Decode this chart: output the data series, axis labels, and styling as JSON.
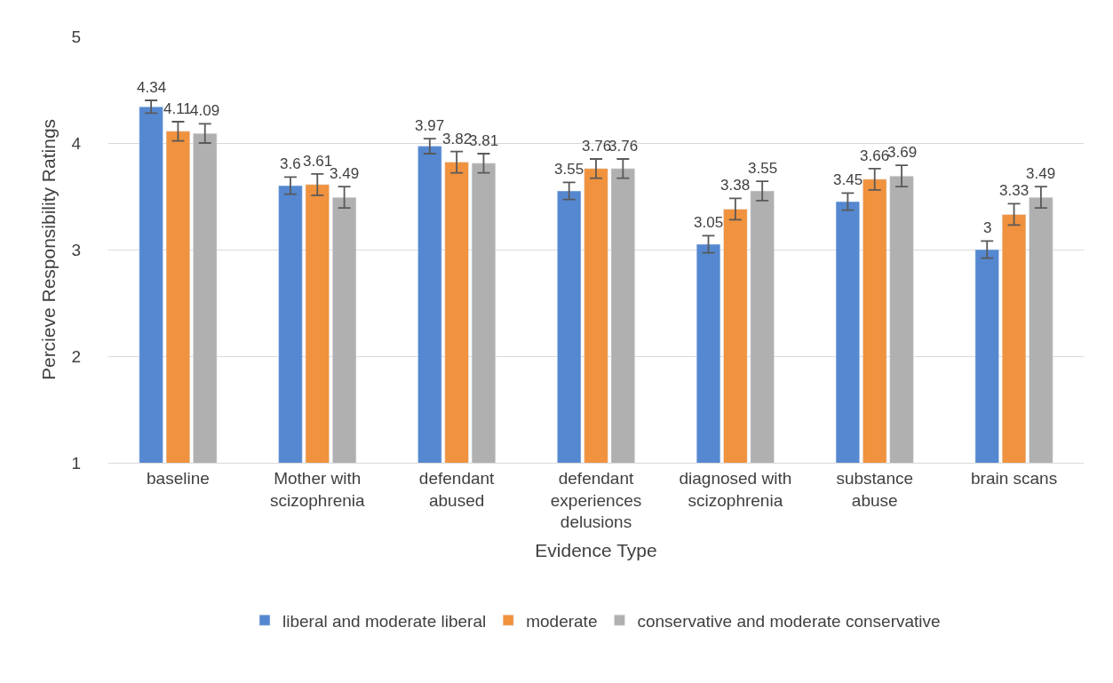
{
  "chart_data": {
    "type": "bar",
    "xlabel": "Evidence Type",
    "ylabel": "Percieve Responsibility Ratings",
    "categories": [
      "baseline",
      "Mother with scizophrenia",
      "defendant abused",
      "defendant experiences delusions",
      "diagnosed with scizophrenia",
      "substance abuse",
      "brain scans"
    ],
    "series": [
      {
        "name": "liberal and moderate liberal",
        "color": "#5588d0",
        "values": [
          4.34,
          3.6,
          3.97,
          3.55,
          3.05,
          3.45,
          3
        ],
        "errors": [
          0.06,
          0.08,
          0.07,
          0.08,
          0.08,
          0.08,
          0.08
        ]
      },
      {
        "name": "moderate",
        "color": "#f0923e",
        "values": [
          4.11,
          3.61,
          3.82,
          3.76,
          3.38,
          3.66,
          3.33
        ],
        "errors": [
          0.09,
          0.1,
          0.1,
          0.09,
          0.1,
          0.1,
          0.1
        ]
      },
      {
        "name": "conservative and moderate conservative",
        "color": "#b0b0b0",
        "values": [
          4.09,
          3.49,
          3.81,
          3.76,
          3.55,
          3.69,
          3.49
        ],
        "errors": [
          0.09,
          0.1,
          0.09,
          0.09,
          0.09,
          0.1,
          0.1
        ]
      }
    ],
    "ylim": [
      1,
      5
    ],
    "yticks": [
      1,
      2,
      3,
      4,
      5
    ],
    "grid": "y",
    "legend": "bottom",
    "data_labels": true
  }
}
